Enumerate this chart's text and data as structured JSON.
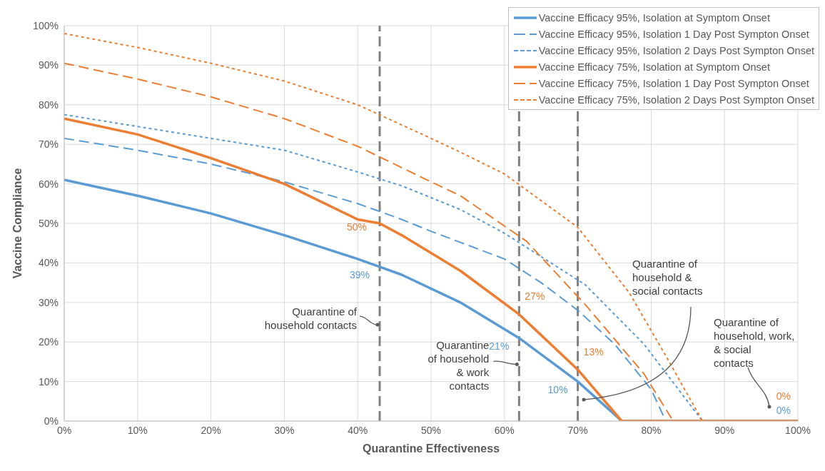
{
  "chart_data": {
    "type": "line",
    "xlabel": "Quarantine Effectiveness",
    "ylabel": "Vaccine Compliance",
    "xlim": [
      0,
      100
    ],
    "ylim": [
      0,
      100
    ],
    "xticks": [
      {
        "value": 0,
        "label": "0%"
      },
      {
        "value": 10,
        "label": "10%"
      },
      {
        "value": 20,
        "label": "20%"
      },
      {
        "value": 30,
        "label": "30%"
      },
      {
        "value": 40,
        "label": "40%"
      },
      {
        "value": 50,
        "label": "50%"
      },
      {
        "value": 60,
        "label": "60%"
      },
      {
        "value": 70,
        "label": "70%"
      },
      {
        "value": 80,
        "label": "80%"
      },
      {
        "value": 90,
        "label": "90%"
      },
      {
        "value": 100,
        "label": "100%"
      }
    ],
    "yticks": [
      {
        "value": 0,
        "label": "0%"
      },
      {
        "value": 10,
        "label": "10%"
      },
      {
        "value": 20,
        "label": "20%"
      },
      {
        "value": 30,
        "label": "30%"
      },
      {
        "value": 40,
        "label": "40%"
      },
      {
        "value": 50,
        "label": "50%"
      },
      {
        "value": 60,
        "label": "60%"
      },
      {
        "value": 70,
        "label": "70%"
      },
      {
        "value": 80,
        "label": "80%"
      },
      {
        "value": 90,
        "label": "90%"
      },
      {
        "value": 100,
        "label": "100%"
      }
    ],
    "grid": true,
    "legend": "top right",
    "marker": "none",
    "series": [
      {
        "name": "Vaccine Efficacy 95%, Isolation at Symptom Onset",
        "color": "#5b9bd5",
        "line_style": "solid",
        "x": [
          0,
          10,
          20,
          30,
          40,
          43,
          46,
          54,
          62,
          70,
          76,
          100
        ],
        "values": [
          61,
          57,
          52.5,
          47,
          41,
          39,
          37,
          30,
          21,
          10,
          0,
          0
        ],
        "value_labels": [
          null,
          null,
          null,
          null,
          null,
          "39%",
          null,
          null,
          "21%",
          "10%",
          null,
          "0%"
        ]
      },
      {
        "name": "Vaccine Efficacy 95%, Isolation 1 Day Post Sympton Onset",
        "color": "#5b9bd5",
        "line_style": "dashed",
        "x": [
          0,
          10,
          20,
          30,
          40,
          46,
          50,
          60,
          65,
          70,
          75,
          80,
          82,
          100
        ],
        "values": [
          71.5,
          68.5,
          65,
          60.5,
          55,
          51,
          48,
          41,
          35,
          28,
          19.5,
          8,
          0,
          0
        ]
      },
      {
        "name": "Vaccine Efficacy 95%, Isolation 2 Days Post Sympton Onset",
        "color": "#5b9bd5",
        "line_style": "dotted",
        "x": [
          0,
          10,
          20,
          30,
          40,
          46,
          54,
          60,
          71,
          79,
          87,
          100
        ],
        "values": [
          77.5,
          74.5,
          71.5,
          68.5,
          63,
          59.5,
          53.5,
          47.5,
          34.5,
          19.5,
          0,
          0
        ]
      },
      {
        "name": "Vaccine Efficacy 75%, Isolation at Symptom Onset",
        "color": "#ed7d31",
        "line_style": "solid",
        "x": [
          0,
          10,
          20,
          30,
          40,
          43,
          46,
          54,
          62,
          70,
          76,
          100
        ],
        "values": [
          76.5,
          72.5,
          66.5,
          60,
          51,
          50,
          47,
          38,
          27,
          13,
          0,
          0
        ],
        "value_labels": [
          null,
          null,
          null,
          null,
          null,
          "50%",
          null,
          null,
          "27%",
          "13%",
          null,
          "0%"
        ]
      },
      {
        "name": "Vaccine Efficacy 75%, Isolation 1 Day Post Sympton Onset",
        "color": "#ed7d31",
        "line_style": "dashed",
        "x": [
          0,
          10,
          20,
          30,
          40,
          50,
          54,
          63,
          71,
          79,
          83,
          100
        ],
        "values": [
          90.5,
          86.5,
          82,
          76.5,
          69.5,
          60.5,
          57,
          45.5,
          29.5,
          12,
          0,
          0
        ]
      },
      {
        "name": "Vaccine Efficacy 75%, Isolation 2 Days Post Sympton Onset",
        "color": "#ed7d31",
        "line_style": "dotted",
        "x": [
          0,
          10,
          20,
          30,
          40,
          50,
          54,
          60,
          70,
          77,
          82,
          87,
          100
        ],
        "values": [
          98,
          94.5,
          90.5,
          86,
          80,
          71.5,
          68,
          62.5,
          49,
          32.5,
          16.5,
          0,
          0
        ]
      }
    ],
    "ref_lines": [
      {
        "axis": "x",
        "value": 43,
        "color": "#808080",
        "line_style": "dashed"
      },
      {
        "axis": "x",
        "value": 62,
        "color": "#808080",
        "line_style": "dashed"
      },
      {
        "axis": "x",
        "value": 70,
        "color": "#808080",
        "line_style": "dashed"
      }
    ],
    "annotations": [
      {
        "text": "Quarantine of household contacts",
        "x": 43,
        "y": 24
      },
      {
        "text": "Quarantine of household & work contacts",
        "x": 62,
        "y": 14
      },
      "Quarantine of household & social contacts",
      "Quarantine of household, work, & social contacts"
    ]
  }
}
